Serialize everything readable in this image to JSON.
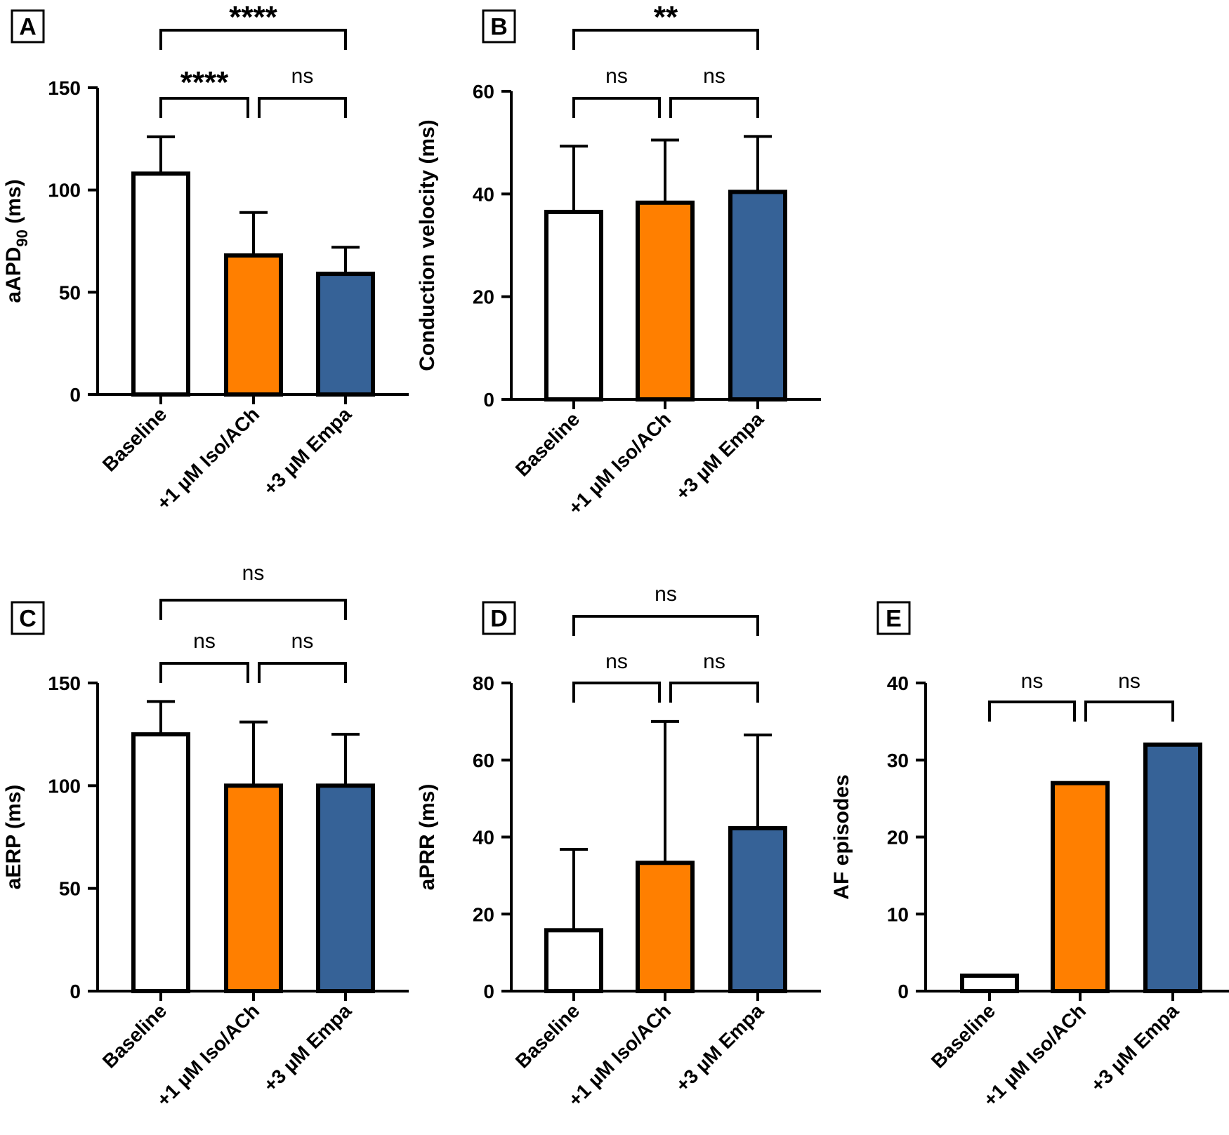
{
  "colors": {
    "baseline": "#ffffff",
    "iso_ach": "#ff7f00",
    "empa": "#366297",
    "stroke": "#000000"
  },
  "chart_data": [
    {
      "panel": "A",
      "type": "bar",
      "ylabel": "aAPD",
      "ylabel_sub": "90",
      "ylabel_suffix": " (ms)",
      "categories": [
        "Baseline",
        "+1 µM Iso/ACh",
        "+3 µM Empa"
      ],
      "values": [
        108,
        68,
        59
      ],
      "errors": [
        18,
        21,
        13
      ],
      "ylim": [
        0,
        150
      ],
      "yticks": [
        0,
        50,
        100,
        150
      ],
      "comparisons": [
        {
          "from": 0,
          "to": 1,
          "label": "****",
          "level": 1
        },
        {
          "from": 1,
          "to": 2,
          "label": "ns",
          "level": 1
        },
        {
          "from": 0,
          "to": 2,
          "label": "****",
          "level": 2
        }
      ]
    },
    {
      "panel": "B",
      "type": "bar",
      "ylabel": "Conduction velocity (ms)",
      "categories": [
        "Baseline",
        "+1 µM Iso/ACh",
        "+3 µM Empa"
      ],
      "values": [
        36.5,
        38.3,
        40.4
      ],
      "errors": [
        12.8,
        12.2,
        10.8
      ],
      "ylim": [
        0,
        60
      ],
      "yticks": [
        0,
        20,
        40,
        60
      ],
      "comparisons": [
        {
          "from": 0,
          "to": 1,
          "label": "ns",
          "level": 1
        },
        {
          "from": 1,
          "to": 2,
          "label": "ns",
          "level": 1
        },
        {
          "from": 0,
          "to": 2,
          "label": "**",
          "level": 2
        }
      ]
    },
    {
      "panel": "C",
      "type": "bar",
      "ylabel": "aERP (ms)",
      "categories": [
        "Baseline",
        "+1 µM Iso/ACh",
        "+3 µM Empa"
      ],
      "values": [
        125,
        100,
        100
      ],
      "errors": [
        16,
        31,
        25
      ],
      "ylim": [
        0,
        150
      ],
      "yticks": [
        0,
        50,
        100,
        150
      ],
      "comparisons": [
        {
          "from": 0,
          "to": 1,
          "label": "ns",
          "level": 1
        },
        {
          "from": 1,
          "to": 2,
          "label": "ns",
          "level": 1
        },
        {
          "from": 0,
          "to": 2,
          "label": "ns",
          "level": 2
        }
      ]
    },
    {
      "panel": "D",
      "type": "bar",
      "ylabel": "aPRR (ms)",
      "categories": [
        "Baseline",
        "+1 µM Iso/ACh",
        "+3 µM Empa"
      ],
      "values": [
        15.8,
        33.3,
        42.3
      ],
      "errors": [
        21,
        36.7,
        24.2
      ],
      "ylim": [
        0,
        80
      ],
      "yticks": [
        0,
        20,
        40,
        60,
        80
      ],
      "comparisons": [
        {
          "from": 0,
          "to": 1,
          "label": "ns",
          "level": 1
        },
        {
          "from": 1,
          "to": 2,
          "label": "ns",
          "level": 1
        },
        {
          "from": 0,
          "to": 2,
          "label": "ns",
          "level": 2
        }
      ]
    },
    {
      "panel": "E",
      "type": "bar",
      "ylabel": "AF episodes",
      "categories": [
        "Baseline",
        "+1 µM Iso/ACh",
        "+3 µM Empa"
      ],
      "values": [
        2,
        27,
        32
      ],
      "errors": null,
      "ylim": [
        0,
        40
      ],
      "yticks": [
        0,
        10,
        20,
        30,
        40
      ],
      "comparisons": [
        {
          "from": 0,
          "to": 1,
          "label": "ns",
          "level": 1
        },
        {
          "from": 1,
          "to": 2,
          "label": "ns",
          "level": 1
        }
      ]
    }
  ]
}
